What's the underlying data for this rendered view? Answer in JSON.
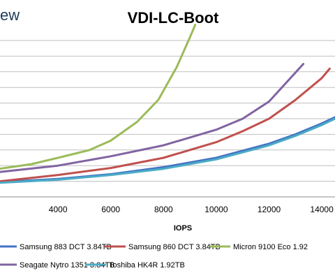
{
  "header": {
    "logo_fragment": "ew"
  },
  "chart_data": {
    "type": "line",
    "title": "VDI-LC-Boot",
    "xlabel": "IOPS",
    "ylabel": "",
    "xlim": [
      1800,
      14500
    ],
    "ylim": [
      0,
      10
    ],
    "x_ticks": [
      4000,
      6000,
      8000,
      10000,
      12000,
      14000
    ],
    "grid": true,
    "legend_position": "bottom",
    "series": [
      {
        "name": "Samsung 883 DCT 3.84TB",
        "color": "#4472c4",
        "x": [
          1800,
          4000,
          6000,
          8000,
          10000,
          12000,
          13000,
          14000,
          14500
        ],
        "y": [
          0.95,
          1.15,
          1.45,
          1.9,
          2.5,
          3.4,
          4.0,
          4.7,
          5.1
        ]
      },
      {
        "name": "Samsung 860 DCT 3.84TB",
        "color": "#c0504d",
        "x": [
          1800,
          4000,
          6000,
          8000,
          10000,
          11000,
          12000,
          13000,
          14000,
          14300
        ],
        "y": [
          1.0,
          1.4,
          1.85,
          2.5,
          3.5,
          4.2,
          5.0,
          6.2,
          7.6,
          8.2
        ]
      },
      {
        "name": "Micron 9100 Eco 1.92",
        "color": "#9bbb59",
        "x": [
          1800,
          3000,
          4000,
          5200,
          6000,
          7000,
          7800,
          8500,
          9000,
          9200
        ],
        "y": [
          1.8,
          2.1,
          2.5,
          3.0,
          3.6,
          4.8,
          6.2,
          8.3,
          10.2,
          11.0
        ]
      },
      {
        "name": "Seagate Nytro 1351 3.84TB",
        "color": "#8064a2",
        "x": [
          1800,
          4000,
          6000,
          8000,
          10000,
          11000,
          12000,
          13300
        ],
        "y": [
          1.6,
          2.0,
          2.6,
          3.3,
          4.3,
          5.0,
          6.1,
          8.5
        ]
      },
      {
        "name": "Toshiba HK4R 1.92TB",
        "color": "#4bacc6",
        "x": [
          1800,
          4000,
          6000,
          8000,
          10000,
          12000,
          13000,
          14000,
          14500
        ],
        "y": [
          0.9,
          1.1,
          1.4,
          1.8,
          2.4,
          3.3,
          3.9,
          4.6,
          5.0
        ]
      }
    ]
  }
}
